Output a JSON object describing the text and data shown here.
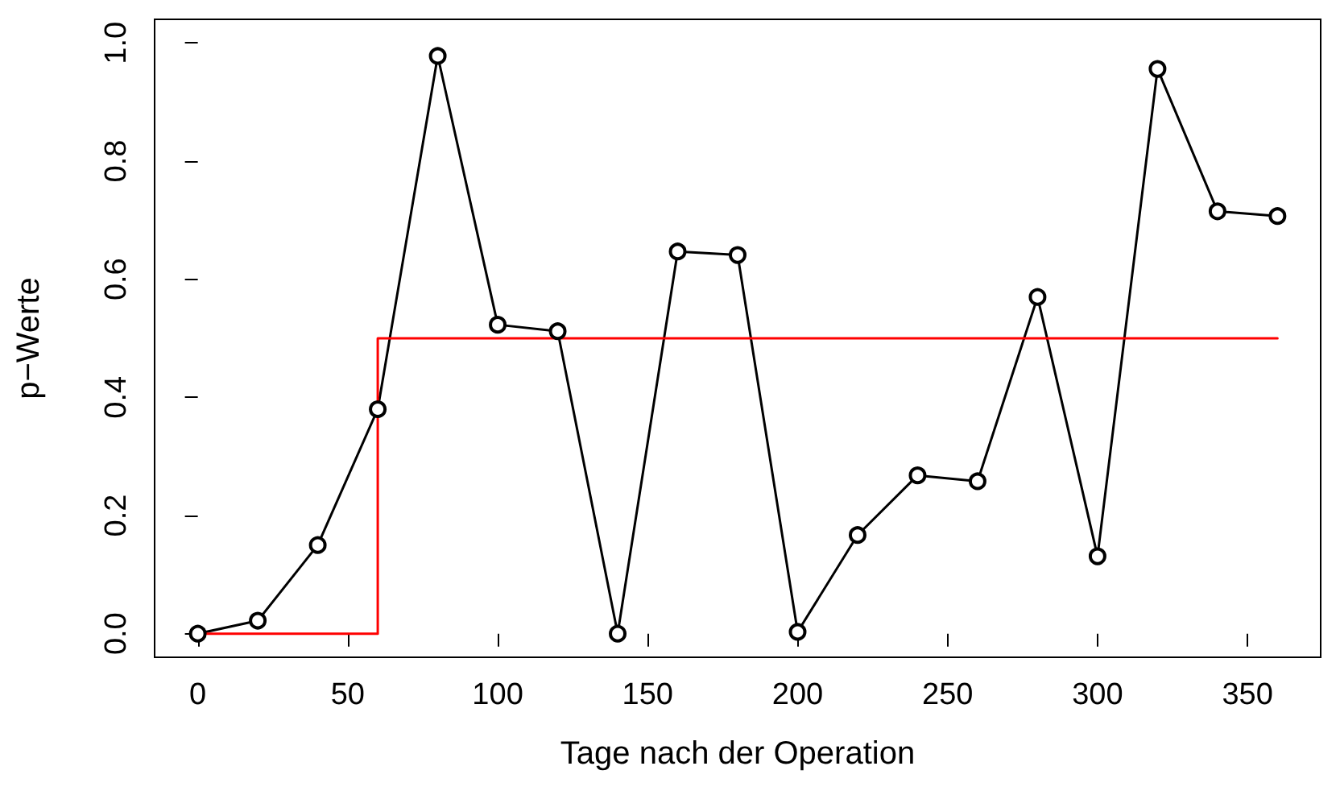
{
  "chart_data": {
    "type": "line",
    "xlabel": "Tage nach der Operation",
    "ylabel": "p−Werte",
    "x": [
      0,
      20,
      40,
      60,
      80,
      100,
      120,
      140,
      160,
      180,
      200,
      220,
      240,
      260,
      280,
      300,
      320,
      340,
      360
    ],
    "series": [
      {
        "color": "#000000",
        "marker": "circle",
        "values": [
          0.0,
          0.022,
          0.15,
          0.38,
          0.978,
          0.523,
          0.512,
          0.0,
          0.647,
          0.641,
          0.003,
          0.167,
          0.268,
          0.258,
          0.57,
          0.131,
          0.956,
          0.715,
          0.707
        ]
      },
      {
        "type": "step",
        "color": "#ff0000",
        "marker": "none",
        "x": [
          0,
          60,
          360
        ],
        "values": [
          0,
          0.5,
          0.5
        ]
      }
    ],
    "xlim": [
      -14.4,
      374.4
    ],
    "xticks": [
      0,
      50,
      100,
      150,
      200,
      250,
      300,
      350
    ],
    "ylim": [
      -0.04,
      1.04
    ],
    "yticks": [
      {
        "value": 0,
        "label": "0.0"
      },
      {
        "value": 0.2,
        "label": "0.2"
      },
      {
        "value": 0.4,
        "label": "0.4"
      },
      {
        "value": 0.6,
        "label": "0.6"
      },
      {
        "value": 0.8,
        "label": "0.8"
      },
      {
        "value": 1,
        "label": "1.0"
      }
    ],
    "grid": false,
    "line_style": "solid"
  }
}
